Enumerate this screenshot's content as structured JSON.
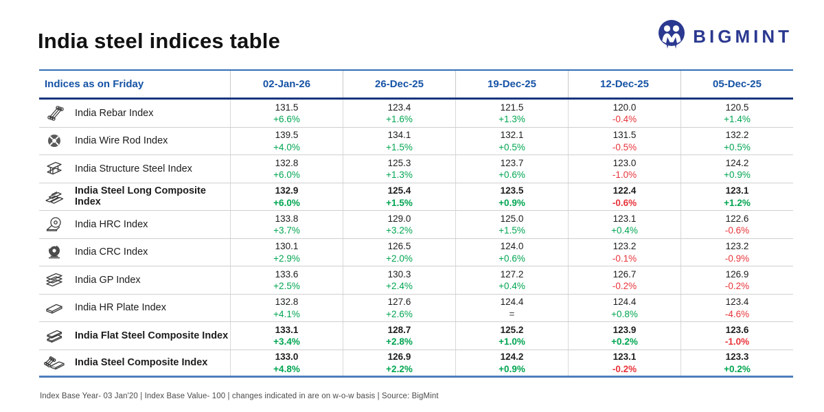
{
  "page": {
    "title": "India steel indices table"
  },
  "logo": {
    "text": "BIGMINT"
  },
  "table": {
    "header": {
      "label": "Indices as on Friday",
      "dates": [
        "02-Jan-26",
        "26-Dec-25",
        "19-Dec-25",
        "12-Dec-25",
        "05-Dec-25"
      ]
    },
    "rows": [
      {
        "name": "India Rebar Index",
        "icon": "rebar-bundle-icon",
        "bold": false,
        "cells": [
          {
            "value": "131.5",
            "change": "+6.6%"
          },
          {
            "value": "123.4",
            "change": "+1.6%"
          },
          {
            "value": "121.5",
            "change": "+1.3%"
          },
          {
            "value": "120.0",
            "change": "-0.4%"
          },
          {
            "value": "120.5",
            "change": "+1.4%"
          }
        ]
      },
      {
        "name": "India Wire Rod Index",
        "icon": "wire-rod-coil-icon",
        "bold": false,
        "cells": [
          {
            "value": "139.5",
            "change": "+4.0%"
          },
          {
            "value": "134.1",
            "change": "+1.5%"
          },
          {
            "value": "132.1",
            "change": "+0.5%"
          },
          {
            "value": "131.5",
            "change": "-0.5%"
          },
          {
            "value": "132.2",
            "change": "+0.5%"
          }
        ]
      },
      {
        "name": "India Structure Steel Index",
        "icon": "i-beam-icon",
        "bold": false,
        "cells": [
          {
            "value": "132.8",
            "change": "+6.0%"
          },
          {
            "value": "125.3",
            "change": "+1.3%"
          },
          {
            "value": "123.7",
            "change": "+0.6%"
          },
          {
            "value": "123.0",
            "change": "-1.0%"
          },
          {
            "value": "124.2",
            "change": "+0.9%"
          }
        ]
      },
      {
        "name": "India Steel Long Composite Index",
        "icon": "billet-stack-icon",
        "bold": true,
        "cells": [
          {
            "value": "132.9",
            "change": "+6.0%"
          },
          {
            "value": "125.4",
            "change": "+1.5%"
          },
          {
            "value": "123.5",
            "change": "+0.9%"
          },
          {
            "value": "122.4",
            "change": "-0.6%"
          },
          {
            "value": "123.1",
            "change": "+1.2%"
          }
        ]
      },
      {
        "name": "India HRC Index",
        "icon": "hot-rolled-coil-icon",
        "bold": false,
        "cells": [
          {
            "value": "133.8",
            "change": "+3.7%"
          },
          {
            "value": "129.0",
            "change": "+3.2%"
          },
          {
            "value": "125.0",
            "change": "+1.5%"
          },
          {
            "value": "123.1",
            "change": "+0.4%"
          },
          {
            "value": "122.6",
            "change": "-0.6%"
          }
        ]
      },
      {
        "name": "India CRC Index",
        "icon": "cold-rolled-coil-icon",
        "bold": false,
        "cells": [
          {
            "value": "130.1",
            "change": "+2.9%"
          },
          {
            "value": "126.5",
            "change": "+2.0%"
          },
          {
            "value": "124.0",
            "change": "+0.6%"
          },
          {
            "value": "123.2",
            "change": "-0.1%"
          },
          {
            "value": "123.2",
            "change": "-0.9%"
          }
        ]
      },
      {
        "name": "India GP Index",
        "icon": "sheet-stack-icon",
        "bold": false,
        "cells": [
          {
            "value": "133.6",
            "change": "+2.5%"
          },
          {
            "value": "130.3",
            "change": "+2.4%"
          },
          {
            "value": "127.2",
            "change": "+0.4%"
          },
          {
            "value": "126.7",
            "change": "-0.2%"
          },
          {
            "value": "126.9",
            "change": "-0.2%"
          }
        ]
      },
      {
        "name": "India HR Plate Index",
        "icon": "steel-plate-icon",
        "bold": false,
        "cells": [
          {
            "value": "132.8",
            "change": "+4.1%"
          },
          {
            "value": "127.6",
            "change": "+2.6%"
          },
          {
            "value": "124.4",
            "change": "="
          },
          {
            "value": "124.4",
            "change": "+0.8%"
          },
          {
            "value": "123.4",
            "change": "-4.6%"
          }
        ]
      },
      {
        "name": "India Flat Steel Composite Index",
        "icon": "flat-bar-stack-icon",
        "bold": true,
        "cells": [
          {
            "value": "133.1",
            "change": "+3.4%"
          },
          {
            "value": "128.7",
            "change": "+2.8%"
          },
          {
            "value": "125.2",
            "change": "+1.0%"
          },
          {
            "value": "123.9",
            "change": "+0.2%"
          },
          {
            "value": "123.6",
            "change": "-1.0%"
          }
        ]
      },
      {
        "name": "India Steel Composite Index",
        "icon": "rods-and-plate-icon",
        "bold": true,
        "cells": [
          {
            "value": "133.0",
            "change": "+4.8%"
          },
          {
            "value": "126.9",
            "change": "+2.2%"
          },
          {
            "value": "124.2",
            "change": "+0.9%"
          },
          {
            "value": "123.1",
            "change": "-0.2%"
          },
          {
            "value": "123.3",
            "change": "+0.2%"
          }
        ]
      }
    ]
  },
  "footer": {
    "note": "Index Base Year- 03 Jan'20 | Index Base Value- 100 | changes indicated in are on w-o-w basis | Source: BigMint"
  },
  "colors": {
    "header_blue": "#1552a5",
    "navy": "#2b3990",
    "rule_navy": "#17357c",
    "green": "#00a551",
    "red": "#e8333a"
  }
}
